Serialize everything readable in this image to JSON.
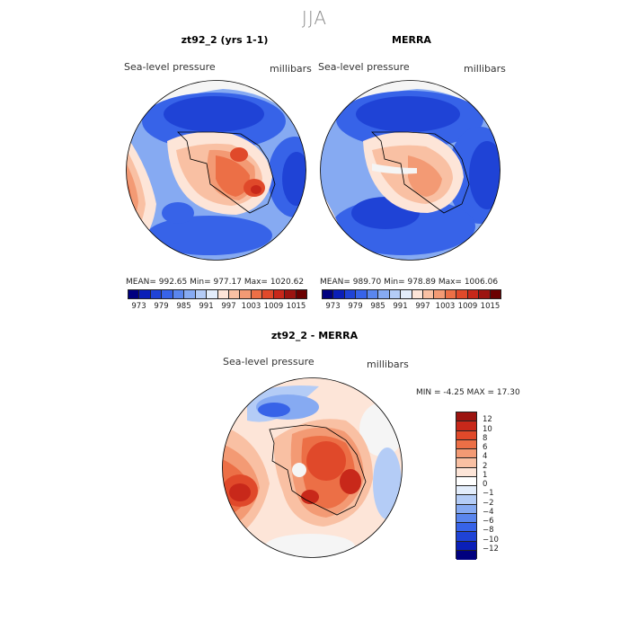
{
  "figure": {
    "season": "JJA"
  },
  "panels": [
    {
      "title": "zt92_2 (yrs 1-1)",
      "variable": "Sea-level pressure",
      "units": "millibars",
      "stats": "MEAN= 992.65   Min= 977.17   Max= 1020.62"
    },
    {
      "title": "MERRA",
      "variable": "Sea-level pressure",
      "units": "millibars",
      "stats": "MEAN= 989.70   Min= 978.89   Max= 1006.06"
    },
    {
      "title": "zt92_2 - MERRA",
      "variable": "Sea-level pressure",
      "units": "millibars",
      "stats": "MIN =   -4.25  MAX =   17.30"
    }
  ],
  "colorbar_top": {
    "colors": [
      "#00007f",
      "#0a1fb8",
      "#1f43d6",
      "#3763e8",
      "#5a86ee",
      "#86aaf2",
      "#b4ccf6",
      "#e3edfb",
      "#fde5d8",
      "#f9c0a3",
      "#f39a74",
      "#ec6f46",
      "#e0492a",
      "#c8281a",
      "#9c1410",
      "#6b0000"
    ],
    "tick_labels": [
      "973",
      "979",
      "985",
      "991",
      "997",
      "1003",
      "1009",
      "1015"
    ]
  },
  "colorbar_diff": {
    "colors": [
      "#9c1410",
      "#c8281a",
      "#e0492a",
      "#ec6f46",
      "#f39a74",
      "#f9c0a3",
      "#fde5d8",
      "#ffffff",
      "#e3edfb",
      "#b4ccf6",
      "#86aaf2",
      "#5a86ee",
      "#3763e8",
      "#1f43d6",
      "#0a1fb8",
      "#00007f"
    ],
    "tick_labels": [
      "12",
      "10",
      "8",
      "6",
      "4",
      "2",
      "1",
      "0",
      "−1",
      "−2",
      "−4",
      "−6",
      "−8",
      "−10",
      "−12"
    ]
  },
  "colors": {
    "deep_blue": "#1f43d6",
    "mid_blue": "#3763e8",
    "light_blue": "#86aaf2",
    "pale_blue": "#b4ccf6",
    "near_white": "#f5f5f5",
    "pale_red": "#fde5d8",
    "light_red": "#f9c0a3",
    "mid_red": "#f39a74",
    "red": "#ec6f46",
    "strong_red": "#e0492a",
    "dark_red": "#c8281a",
    "darkest_red": "#9c1410"
  }
}
